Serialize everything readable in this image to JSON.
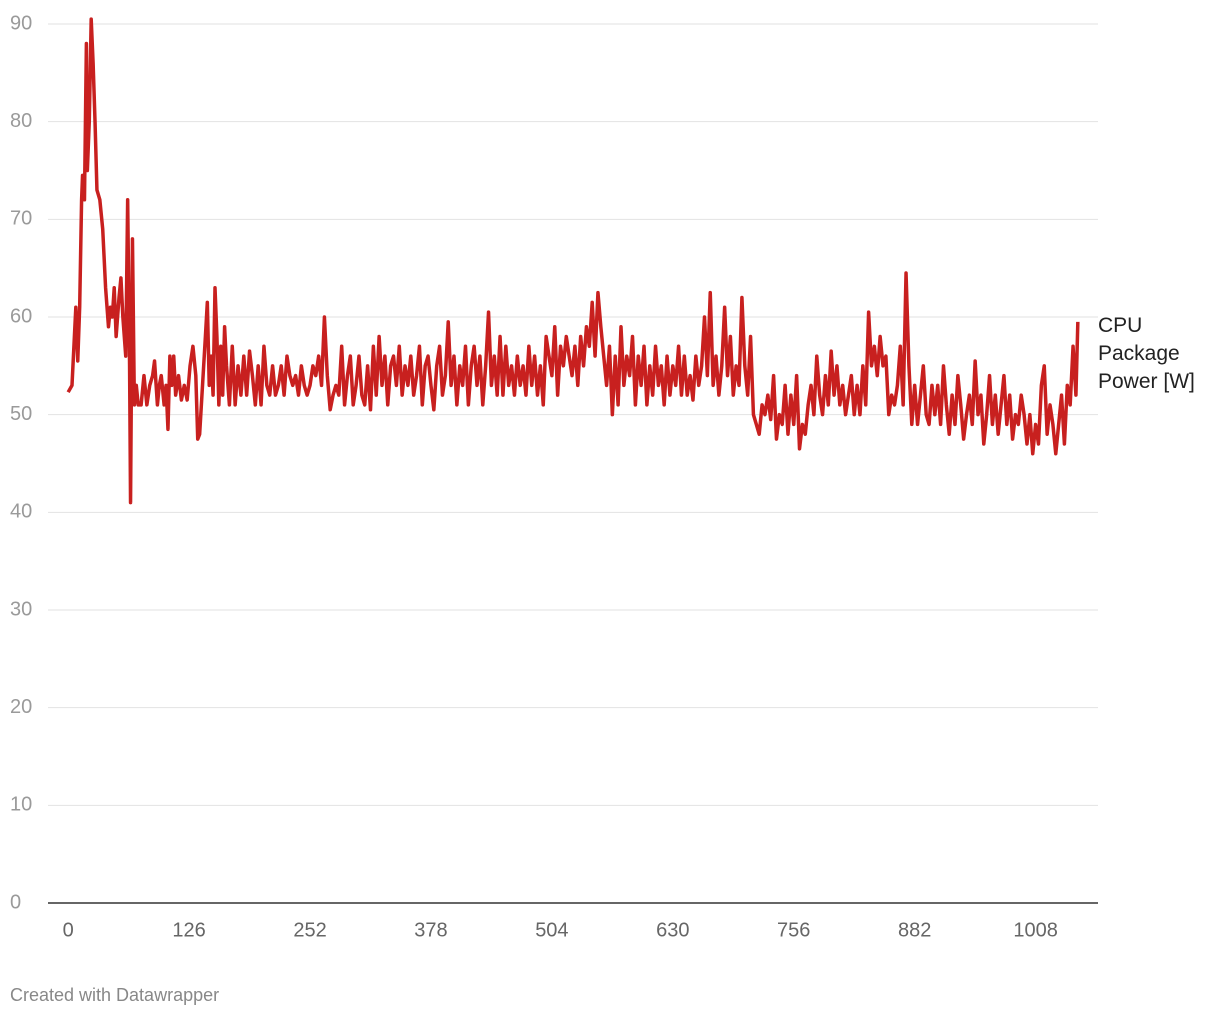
{
  "chart_data": {
    "type": "line",
    "x": [
      0,
      4,
      8,
      10,
      12,
      14,
      15,
      17,
      19,
      20,
      22,
      24,
      26,
      28,
      30,
      33,
      36,
      39,
      42,
      44,
      46,
      48,
      50,
      53,
      55,
      57,
      60,
      62,
      64,
      65,
      67,
      69,
      71,
      73,
      76,
      79,
      82,
      85,
      88,
      90,
      93,
      95,
      97,
      100,
      102,
      104,
      106,
      108,
      110,
      112,
      115,
      118,
      121,
      124,
      127,
      130,
      133,
      135,
      137,
      140,
      143,
      145,
      147,
      149,
      151,
      153,
      155,
      157,
      159,
      161,
      163,
      165,
      168,
      171,
      174,
      177,
      180,
      183,
      186,
      189,
      192,
      195,
      198,
      201,
      204,
      207,
      210,
      213,
      216,
      219,
      222,
      225,
      228,
      231,
      234,
      237,
      240,
      243,
      246,
      249,
      252,
      255,
      258,
      261,
      264,
      267,
      270,
      273,
      276,
      279,
      282,
      285,
      288,
      291,
      294,
      297,
      300,
      303,
      306,
      309,
      312,
      315,
      318,
      321,
      324,
      327,
      330,
      333,
      336,
      339,
      342,
      345,
      348,
      351,
      354,
      357,
      360,
      363,
      366,
      369,
      372,
      375,
      378,
      381,
      384,
      387,
      390,
      393,
      396,
      399,
      402,
      405,
      408,
      411,
      414,
      417,
      420,
      423,
      426,
      429,
      432,
      435,
      438,
      441,
      444,
      447,
      450,
      453,
      456,
      459,
      462,
      465,
      468,
      471,
      474,
      477,
      480,
      483,
      486,
      489,
      492,
      495,
      498,
      501,
      504,
      507,
      510,
      513,
      516,
      519,
      522,
      525,
      528,
      531,
      534,
      537,
      540,
      543,
      546,
      549,
      552,
      555,
      558,
      561,
      564,
      567,
      570,
      573,
      576,
      579,
      582,
      585,
      588,
      591,
      594,
      597,
      600,
      603,
      606,
      609,
      612,
      615,
      618,
      621,
      624,
      627,
      630,
      633,
      636,
      639,
      642,
      645,
      648,
      651,
      654,
      657,
      660,
      663,
      666,
      669,
      672,
      675,
      678,
      681,
      684,
      687,
      690,
      693,
      696,
      699,
      702,
      705,
      708,
      711,
      714,
      717,
      720,
      723,
      726,
      729,
      732,
      735,
      738,
      741,
      744,
      747,
      750,
      753,
      756,
      759,
      762,
      765,
      768,
      771,
      774,
      777,
      780,
      783,
      786,
      789,
      792,
      795,
      798,
      801,
      804,
      807,
      810,
      813,
      816,
      819,
      822,
      825,
      828,
      831,
      834,
      837,
      840,
      843,
      846,
      849,
      852,
      855,
      858,
      861,
      864,
      867,
      870,
      873,
      876,
      879,
      882,
      885,
      888,
      891,
      894,
      897,
      900,
      903,
      906,
      909,
      912,
      915,
      918,
      921,
      924,
      927,
      930,
      933,
      936,
      939,
      942,
      945,
      948,
      951,
      954,
      957,
      960,
      963,
      966,
      969,
      972,
      975,
      978,
      981,
      984,
      987,
      990,
      993,
      996,
      999,
      1002,
      1005,
      1008,
      1011,
      1014,
      1017,
      1020,
      1023,
      1026,
      1029,
      1032,
      1035,
      1038,
      1041,
      1044,
      1047,
      1050,
      1052
    ],
    "series": [
      {
        "name": "CPU Package Power [W]",
        "color": "#c8201f",
        "values": [
          52.3,
          53,
          61,
          55.5,
          61,
          72,
          74.5,
          72,
          88,
          75,
          80,
          90.5,
          86,
          80,
          73,
          72,
          69,
          63,
          59,
          61,
          60,
          63,
          58,
          62,
          64,
          60,
          56,
          72,
          55,
          41,
          68,
          51,
          53,
          51,
          51,
          54,
          51,
          53,
          54,
          55.5,
          51,
          53,
          54,
          51,
          53,
          48.5,
          56,
          53,
          56,
          52,
          54,
          51.5,
          53,
          51.5,
          55,
          57,
          54,
          47.5,
          48,
          53,
          58,
          61.5,
          53,
          56,
          52,
          63,
          58,
          51,
          57,
          52,
          59,
          55,
          51,
          57,
          51,
          55,
          52,
          56,
          52,
          56.5,
          54,
          51,
          55,
          51,
          57,
          53,
          52,
          55,
          52,
          53,
          55,
          52,
          56,
          54,
          53,
          54,
          52,
          55,
          53,
          52,
          53,
          55,
          54,
          56,
          53,
          60,
          54,
          50.5,
          52,
          53,
          52,
          57,
          51,
          54,
          56,
          51,
          53,
          56,
          52,
          51,
          55,
          50.5,
          57,
          52,
          58,
          53,
          56,
          51,
          55,
          56,
          53,
          57,
          52,
          55,
          53,
          56,
          52,
          54,
          57,
          51,
          55,
          56,
          53,
          50.5,
          55,
          57,
          52,
          54,
          59.5,
          53,
          56,
          51,
          55,
          53,
          57,
          51,
          55,
          57,
          53,
          56,
          51,
          55,
          60.5,
          53,
          56,
          52,
          58,
          52,
          57,
          53,
          55,
          52,
          56,
          53,
          55,
          52,
          57,
          53,
          56,
          52,
          55,
          51,
          58,
          56,
          54,
          59,
          52,
          57,
          55,
          58,
          56,
          54,
          57,
          53,
          58,
          55,
          59,
          57,
          61.5,
          56,
          62.5,
          59,
          56,
          53,
          57,
          50,
          56,
          51,
          59,
          53,
          56,
          54,
          58,
          51,
          56,
          53,
          57,
          51,
          55,
          52,
          57,
          53,
          55,
          51,
          56,
          52,
          55,
          53,
          57,
          52,
          56,
          52,
          54,
          51.5,
          56,
          53,
          55,
          60,
          54,
          62.5,
          53,
          56,
          52,
          55,
          61,
          54,
          58,
          52,
          55,
          53,
          62,
          55,
          52,
          58,
          50,
          49,
          48,
          51,
          50,
          52,
          49.5,
          54,
          47.5,
          50,
          49,
          53,
          48,
          52,
          49,
          54,
          46.5,
          49,
          48,
          51,
          53,
          50,
          56,
          52,
          50,
          54,
          51,
          56.5,
          52,
          55,
          51,
          53,
          50,
          52,
          54,
          50,
          53,
          50,
          55,
          51,
          60.5,
          55,
          57,
          54,
          58,
          55,
          56,
          50,
          52,
          51,
          53,
          57,
          51,
          64.5,
          55,
          49,
          53,
          49,
          52,
          55,
          50,
          49,
          53,
          50,
          53,
          49,
          55,
          51,
          48,
          52,
          49,
          54,
          51,
          47.5,
          50,
          52,
          49,
          55.5,
          50,
          52,
          47,
          50,
          54,
          49,
          52,
          48,
          51,
          54,
          49,
          52,
          47.5,
          50,
          49,
          52,
          50,
          47,
          50,
          46,
          49,
          47,
          53,
          55,
          48,
          51,
          49,
          46,
          49,
          52,
          47,
          53,
          51,
          57,
          52,
          59.5
        ]
      }
    ],
    "xlim": [
      -21,
      1073
    ],
    "xticks": [
      0,
      126,
      252,
      378,
      504,
      630,
      756,
      882,
      1008
    ],
    "ylim": [
      0,
      90
    ],
    "yticks": [
      0,
      10,
      20,
      30,
      40,
      50,
      60,
      70,
      80,
      90
    ],
    "grid": true,
    "footer": "Created with Datawrapper"
  }
}
